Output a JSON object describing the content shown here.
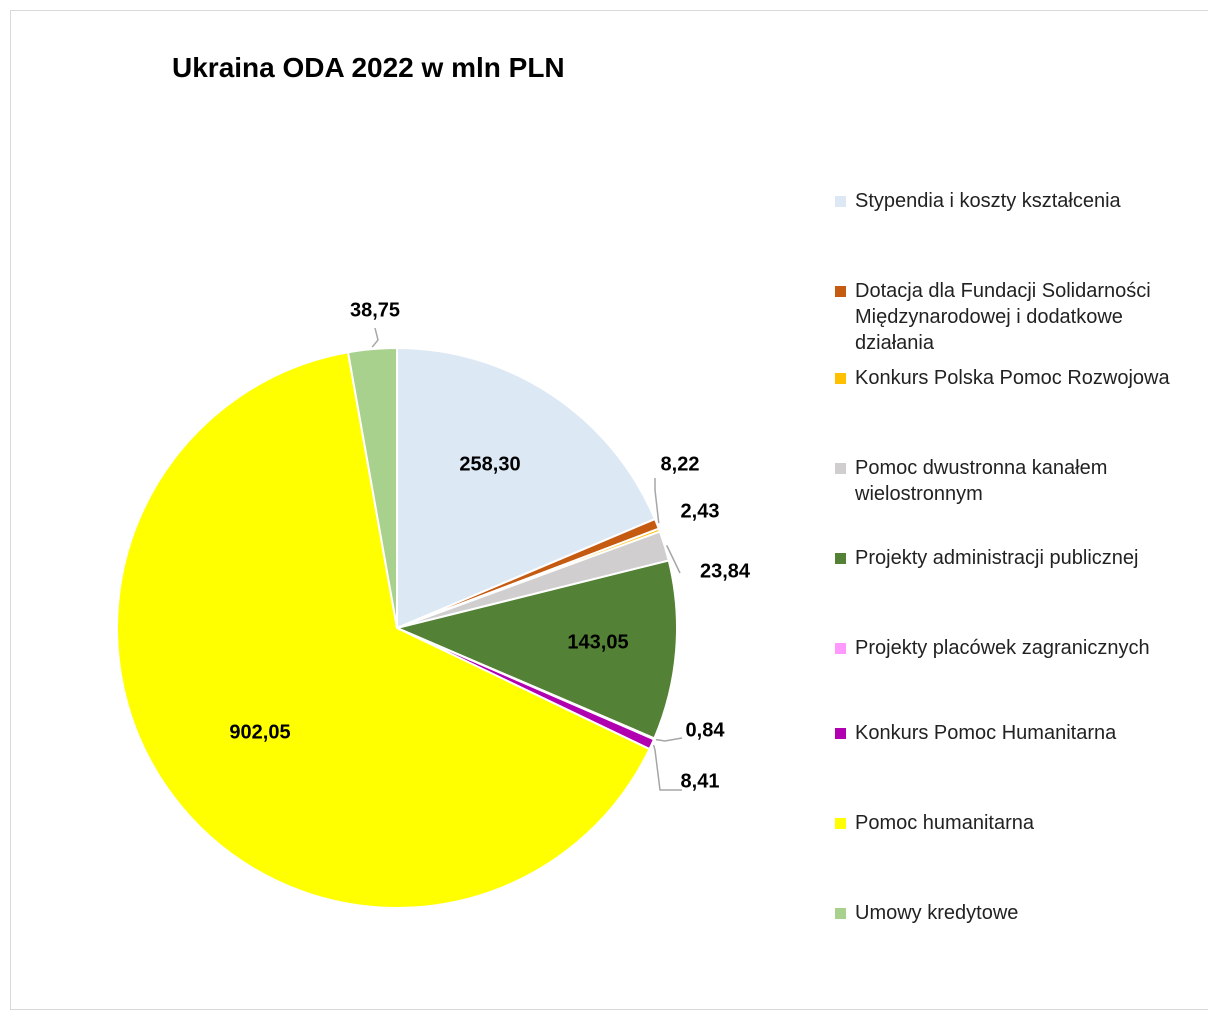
{
  "chart_data": {
    "type": "pie",
    "title": "Ukraina ODA 2022 w mln PLN",
    "categories": [
      "Stypendia i koszty kształcenia",
      "Dotacja dla Fundacji Solidarności Międzynarodowej i dodatkowe działania",
      "Konkurs Polska Pomoc Rozwojowa",
      "Pomoc dwustronna kanałem wielostronnym",
      "Projekty administracji publicznej",
      "Projekty placówek zagranicznych",
      "Konkurs Pomoc Humanitarna",
      "Pomoc humanitarna",
      "Umowy kredytowe"
    ],
    "values": [
      258.3,
      8.22,
      2.43,
      23.84,
      143.05,
      0.84,
      8.41,
      902.05,
      38.75
    ],
    "value_labels": [
      "258,30",
      "8,22",
      "2,43",
      "23,84",
      "143,05",
      "0,84",
      "8,41",
      "902,05",
      "38,75"
    ],
    "colors": [
      "#dde8f5",
      "#c55a11",
      "#ffc000",
      "#d0cece",
      "#538135",
      "#ff99ff",
      "#b000b0",
      "#ffff00",
      "#a9d18e"
    ],
    "legend": "right"
  }
}
